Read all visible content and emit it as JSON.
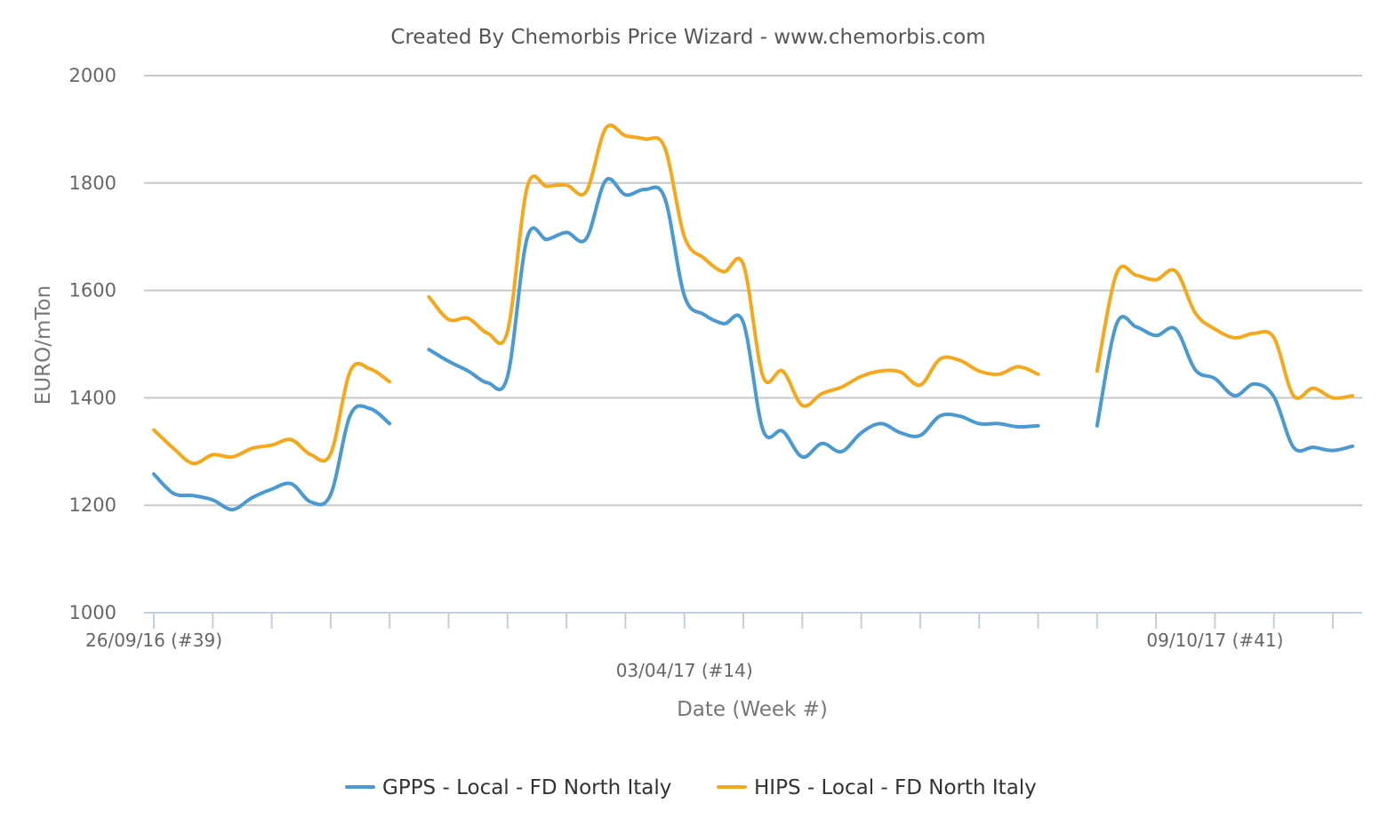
{
  "chart_data": {
    "type": "line",
    "title": "Created By Chemorbis Price Wizard - www.chemorbis.com",
    "ylabel": "EURO/mTon",
    "xlabel": "Date (Week #)",
    "ylim": [
      1000,
      2000
    ],
    "yticks": [
      1000,
      1200,
      1400,
      1600,
      1800,
      2000
    ],
    "grid": true,
    "legend_position": "bottom-center",
    "x_tick_labels": [
      {
        "label": "26/09/16 (#39)",
        "x": 0
      },
      {
        "label": "03/04/17 (#14)",
        "x": 27
      },
      {
        "label": "09/10/17 (#41)",
        "x": 54
      }
    ],
    "x_range": [
      0,
      62
    ],
    "series": [
      {
        "name": "GPPS - Local - FD North Italy",
        "color": "#4a9ad1",
        "points": [
          [
            0,
            1258
          ],
          [
            1,
            1222
          ],
          [
            2,
            1218
          ],
          [
            3,
            1210
          ],
          [
            4,
            1192
          ],
          [
            5,
            1214
          ],
          [
            6,
            1230
          ],
          [
            7,
            1240
          ],
          [
            8,
            1206
          ],
          [
            9,
            1220
          ],
          [
            10,
            1368
          ],
          [
            11,
            1380
          ],
          [
            12,
            1352
          ],
          null,
          [
            14,
            1490
          ],
          [
            15,
            1468
          ],
          [
            16,
            1450
          ],
          [
            17,
            1428
          ],
          [
            18,
            1440
          ],
          [
            19,
            1698
          ],
          [
            20,
            1695
          ],
          [
            21,
            1708
          ],
          [
            22,
            1696
          ],
          [
            23,
            1805
          ],
          [
            24,
            1778
          ],
          [
            25,
            1788
          ],
          [
            26,
            1772
          ],
          [
            27,
            1590
          ],
          [
            28,
            1555
          ],
          [
            29,
            1538
          ],
          [
            30,
            1540
          ],
          [
            31,
            1340
          ],
          [
            32,
            1338
          ],
          [
            33,
            1290
          ],
          [
            34,
            1315
          ],
          [
            35,
            1300
          ],
          [
            36,
            1335
          ],
          [
            37,
            1352
          ],
          [
            38,
            1335
          ],
          [
            39,
            1330
          ],
          [
            40,
            1366
          ],
          [
            41,
            1366
          ],
          [
            42,
            1352
          ],
          [
            43,
            1352
          ],
          [
            44,
            1346
          ],
          [
            45,
            1348
          ],
          null,
          [
            48,
            1348
          ],
          [
            49,
            1538
          ],
          [
            50,
            1532
          ],
          [
            51,
            1516
          ],
          [
            52,
            1528
          ],
          [
            53,
            1452
          ],
          [
            54,
            1436
          ],
          [
            55,
            1404
          ],
          [
            56,
            1426
          ],
          [
            57,
            1402
          ],
          [
            58,
            1308
          ],
          [
            59,
            1308
          ],
          [
            60,
            1302
          ],
          [
            61,
            1310
          ]
        ]
      },
      {
        "name": "HIPS - Local - FD North Italy",
        "color": "#f5a81c",
        "points": [
          [
            0,
            1340
          ],
          [
            1,
            1306
          ],
          [
            2,
            1278
          ],
          [
            3,
            1294
          ],
          [
            4,
            1290
          ],
          [
            5,
            1306
          ],
          [
            6,
            1312
          ],
          [
            7,
            1322
          ],
          [
            8,
            1294
          ],
          [
            9,
            1296
          ],
          [
            10,
            1450
          ],
          [
            11,
            1454
          ],
          [
            12,
            1430
          ],
          null,
          [
            14,
            1588
          ],
          [
            15,
            1546
          ],
          [
            16,
            1548
          ],
          [
            17,
            1520
          ],
          [
            18,
            1524
          ],
          [
            19,
            1792
          ],
          [
            20,
            1794
          ],
          [
            21,
            1796
          ],
          [
            22,
            1784
          ],
          [
            23,
            1902
          ],
          [
            24,
            1888
          ],
          [
            25,
            1882
          ],
          [
            26,
            1866
          ],
          [
            27,
            1700
          ],
          [
            28,
            1660
          ],
          [
            29,
            1635
          ],
          [
            30,
            1648
          ],
          [
            31,
            1440
          ],
          [
            32,
            1450
          ],
          [
            33,
            1386
          ],
          [
            34,
            1408
          ],
          [
            35,
            1420
          ],
          [
            36,
            1440
          ],
          [
            37,
            1450
          ],
          [
            38,
            1448
          ],
          [
            39,
            1424
          ],
          [
            40,
            1472
          ],
          [
            41,
            1470
          ],
          [
            42,
            1450
          ],
          [
            43,
            1444
          ],
          [
            44,
            1458
          ],
          [
            45,
            1444
          ],
          null,
          [
            48,
            1450
          ],
          [
            49,
            1632
          ],
          [
            50,
            1628
          ],
          [
            51,
            1620
          ],
          [
            52,
            1636
          ],
          [
            53,
            1558
          ],
          [
            54,
            1528
          ],
          [
            55,
            1512
          ],
          [
            56,
            1520
          ],
          [
            57,
            1512
          ],
          [
            58,
            1404
          ],
          [
            59,
            1418
          ],
          [
            60,
            1400
          ],
          [
            61,
            1404
          ]
        ]
      }
    ]
  }
}
